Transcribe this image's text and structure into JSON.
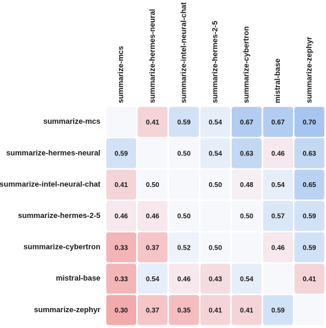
{
  "chart_data": {
    "type": "heatmap",
    "columns": [
      "summarize-mcs",
      "summarize-hermes-neural",
      "summarize-intel-neural-chat",
      "summarize-hermes-2-5",
      "summarize-cybertron",
      "mistral-base",
      "summarize-zephyr"
    ],
    "rows": [
      "summarize-mcs",
      "summarize-hermes-neural",
      "summarize-intel-neural-chat",
      "summarize-hermes-2-5",
      "summarize-cybertron",
      "mistral-base",
      "summarize-zephyr"
    ],
    "values": [
      [
        null,
        0.41,
        0.59,
        0.54,
        0.67,
        0.67,
        0.7
      ],
      [
        0.59,
        null,
        0.5,
        0.54,
        0.63,
        0.46,
        0.63
      ],
      [
        0.41,
        0.5,
        null,
        0.5,
        0.48,
        0.54,
        0.65
      ],
      [
        0.46,
        0.46,
        0.5,
        null,
        0.5,
        0.57,
        0.59
      ],
      [
        0.33,
        0.37,
        0.52,
        0.5,
        null,
        0.46,
        0.59
      ],
      [
        0.33,
        0.54,
        0.46,
        0.43,
        0.54,
        null,
        0.41
      ],
      [
        0.3,
        0.37,
        0.35,
        0.41,
        0.41,
        0.59,
        null
      ]
    ],
    "value_labels": [
      [
        null,
        "0.41",
        "0.59",
        "0.54",
        "0.67",
        "0.67",
        "0.70"
      ],
      [
        "0.59",
        null,
        "0.50",
        "0.54",
        "0.63",
        "0.46",
        "0.63"
      ],
      [
        "0.41",
        "0.50",
        null,
        "0.50",
        "0.48",
        "0.54",
        "0.65"
      ],
      [
        "0.46",
        "0.46",
        "0.50",
        null,
        "0.50",
        "0.57",
        "0.59"
      ],
      [
        "0.33",
        "0.37",
        "0.52",
        "0.50",
        null,
        "0.46",
        "0.59"
      ],
      [
        "0.33",
        "0.54",
        "0.46",
        "0.43",
        "0.54",
        null,
        "0.41"
      ],
      [
        "0.30",
        "0.37",
        "0.35",
        "0.41",
        "0.41",
        "0.59",
        null
      ]
    ],
    "color_low": "#f4a9ab",
    "color_mid": "#f6f8fc",
    "color_high": "#a6c6ee",
    "empty_color": "#f6f8fc"
  }
}
